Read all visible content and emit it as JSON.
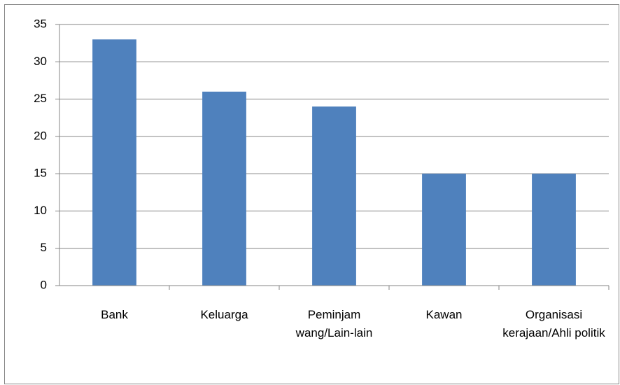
{
  "chart_data": {
    "type": "bar",
    "categories": [
      "Bank",
      "Keluarga",
      "Peminjam wang/Lain-lain",
      "Kawan",
      "Organisasi kerajaan/Ahli politik"
    ],
    "values": [
      33,
      26,
      24,
      15,
      15
    ],
    "color": "#4f81bd",
    "ylim": [
      0,
      35
    ],
    "yticks": [
      0,
      5,
      10,
      15,
      20,
      25,
      30,
      35
    ],
    "grid": true
  }
}
